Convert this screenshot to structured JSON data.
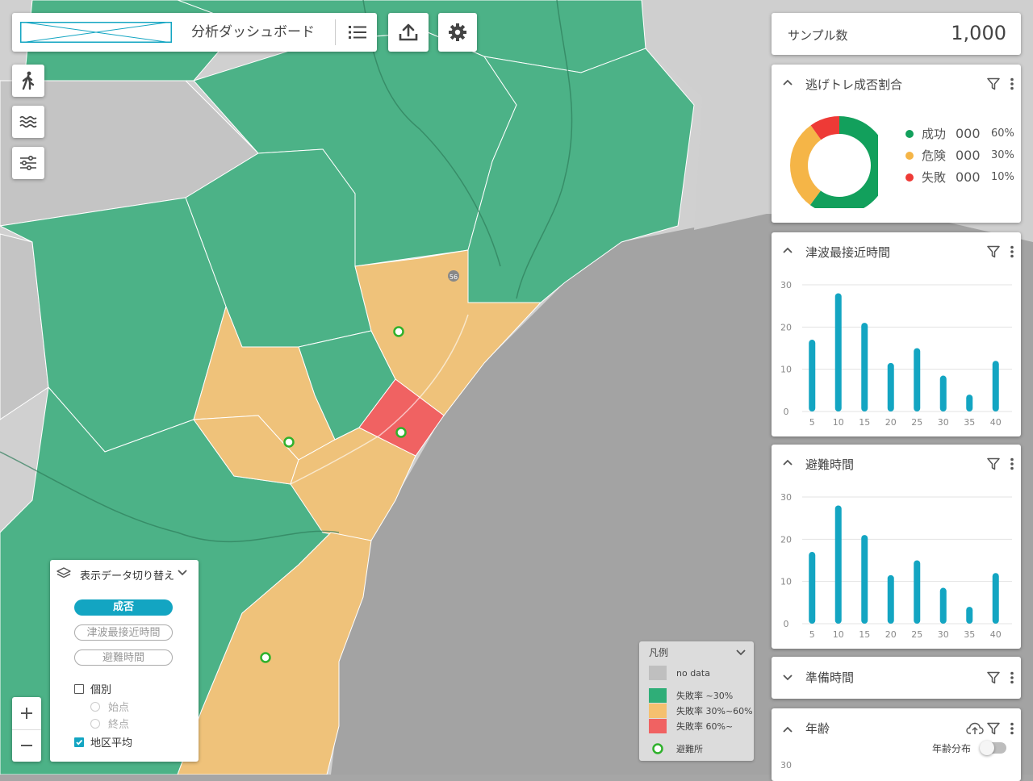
{
  "header": {
    "title": "分析ダッシュボード"
  },
  "sample": {
    "label": "サンプル数",
    "value": "1,000"
  },
  "panels": {
    "success_ratio": {
      "title": "逃げトレ成否割合",
      "items": [
        {
          "name": "成功",
          "value": "000",
          "pct": "60%",
          "color": "#12a05c"
        },
        {
          "name": "危険",
          "value": "000",
          "pct": "30%",
          "color": "#f5b547"
        },
        {
          "name": "失敗",
          "value": "000",
          "pct": "10%",
          "color": "#ee3a36"
        }
      ]
    },
    "tsunami": {
      "title": "津波最接近時間"
    },
    "evac": {
      "title": "避難時間"
    },
    "prep": {
      "title": "準備時間"
    },
    "age": {
      "title": "年齢",
      "toggle_label": "年齢分布",
      "axis_top": "30"
    }
  },
  "chart_data": [
    {
      "type": "pie",
      "title": "逃げトレ成否割合",
      "categories": [
        "成功",
        "危険",
        "失敗"
      ],
      "values": [
        60,
        30,
        10
      ],
      "colors": [
        "#12a05c",
        "#f5b547",
        "#ee3a36"
      ]
    },
    {
      "type": "bar",
      "title": "津波最接近時間",
      "categories": [
        "5",
        "10",
        "15",
        "20",
        "25",
        "30",
        "35",
        "40"
      ],
      "values": [
        17,
        28,
        21,
        11.5,
        15,
        8.5,
        4,
        12
      ],
      "yticks": [
        "0",
        "10",
        "20",
        "30"
      ],
      "ylim": [
        0,
        30
      ],
      "color": "#13a5c2",
      "grid": true
    },
    {
      "type": "bar",
      "title": "避難時間",
      "categories": [
        "5",
        "10",
        "15",
        "20",
        "25",
        "30",
        "35",
        "40"
      ],
      "values": [
        17,
        28,
        21,
        11.5,
        15,
        8.5,
        4,
        12
      ],
      "yticks": [
        "0",
        "10",
        "20",
        "30"
      ],
      "ylim": [
        0,
        30
      ],
      "color": "#13a5c2",
      "grid": true
    }
  ],
  "data_switch": {
    "title": "表示データ切り替え",
    "buttons": [
      "成否",
      "津波最接近時間",
      "避難時間"
    ],
    "individual": "個別",
    "start": "始点",
    "end": "終点",
    "district_avg": "地区平均"
  },
  "legend": {
    "title": "凡例",
    "items": [
      {
        "label": "no data",
        "color": "#bfbfbf"
      },
      {
        "label": "失敗率 ~30%",
        "color": "#2fae78"
      },
      {
        "label": "失敗率 30%~60%",
        "color": "#f5c06f"
      },
      {
        "label": "失敗率 60%~",
        "color": "#f06262"
      }
    ],
    "shelter": "避難所"
  },
  "map": {
    "route_label": "56",
    "icons": [
      "walk-icon",
      "wave-icon",
      "sliders-icon",
      "zoom-in-icon",
      "zoom-out-icon"
    ]
  }
}
